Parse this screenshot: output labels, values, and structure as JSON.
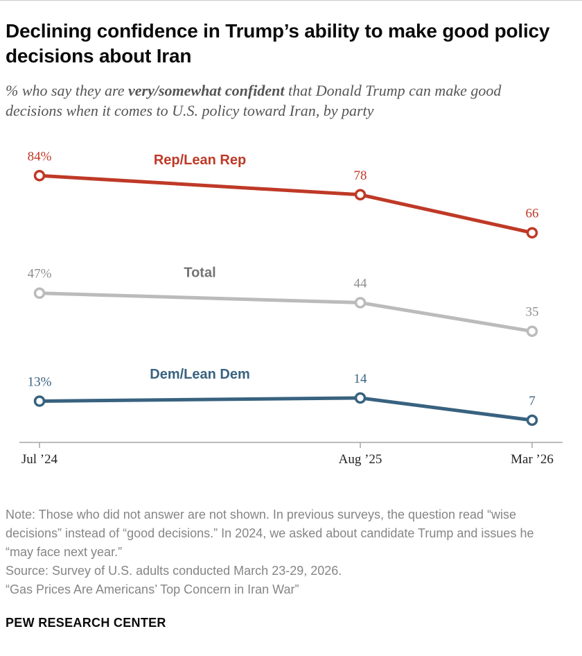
{
  "header": {
    "title": "Declining confidence in Trump’s ability to make good policy decisions about Iran",
    "subtitle_prefix": "% who say they are ",
    "subtitle_bold": "very/somewhat confident",
    "subtitle_suffix": " that Donald Trump can make good decisions when it comes to U.S. policy toward Iran, by party"
  },
  "chart_data": {
    "type": "line",
    "x": [
      "Jul ’24",
      "Aug ’25",
      "Mar ’26"
    ],
    "ylim": [
      0,
      100
    ],
    "grid": false,
    "legend_position": "inline-labels",
    "axis_color": "#a6a6a6",
    "series": [
      {
        "name": "Rep/Lean Rep",
        "values": [
          84,
          78,
          66
        ],
        "point_labels": [
          "84%",
          "78",
          "66"
        ],
        "color": "#bf3927",
        "label_color": "#bf3927",
        "name_color": "#bf3927"
      },
      {
        "name": "Total",
        "values": [
          47,
          44,
          35
        ],
        "point_labels": [
          "47%",
          "44",
          "35"
        ],
        "color": "#bbbbbb",
        "label_color": "#8e8e8e",
        "name_color": "#747474"
      },
      {
        "name": "Dem/Lean Dem",
        "values": [
          13,
          14,
          7
        ],
        "point_labels": [
          "13%",
          "14",
          "7"
        ],
        "color": "#38627f",
        "label_color": "#38627f",
        "name_color": "#38627f"
      }
    ]
  },
  "footer": {
    "note": "Note: Those who did not answer are not shown. In previous surveys, the question read “wise decisions” instead of “good decisions.” In 2024, we asked about candidate Trump and issues he “may face next year.”",
    "source": "Source: Survey of U.S. adults conducted March 23-29, 2026.",
    "report": "“Gas Prices Are Americans’ Top Concern in Iran War”",
    "brand": "PEW RESEARCH CENTER"
  }
}
